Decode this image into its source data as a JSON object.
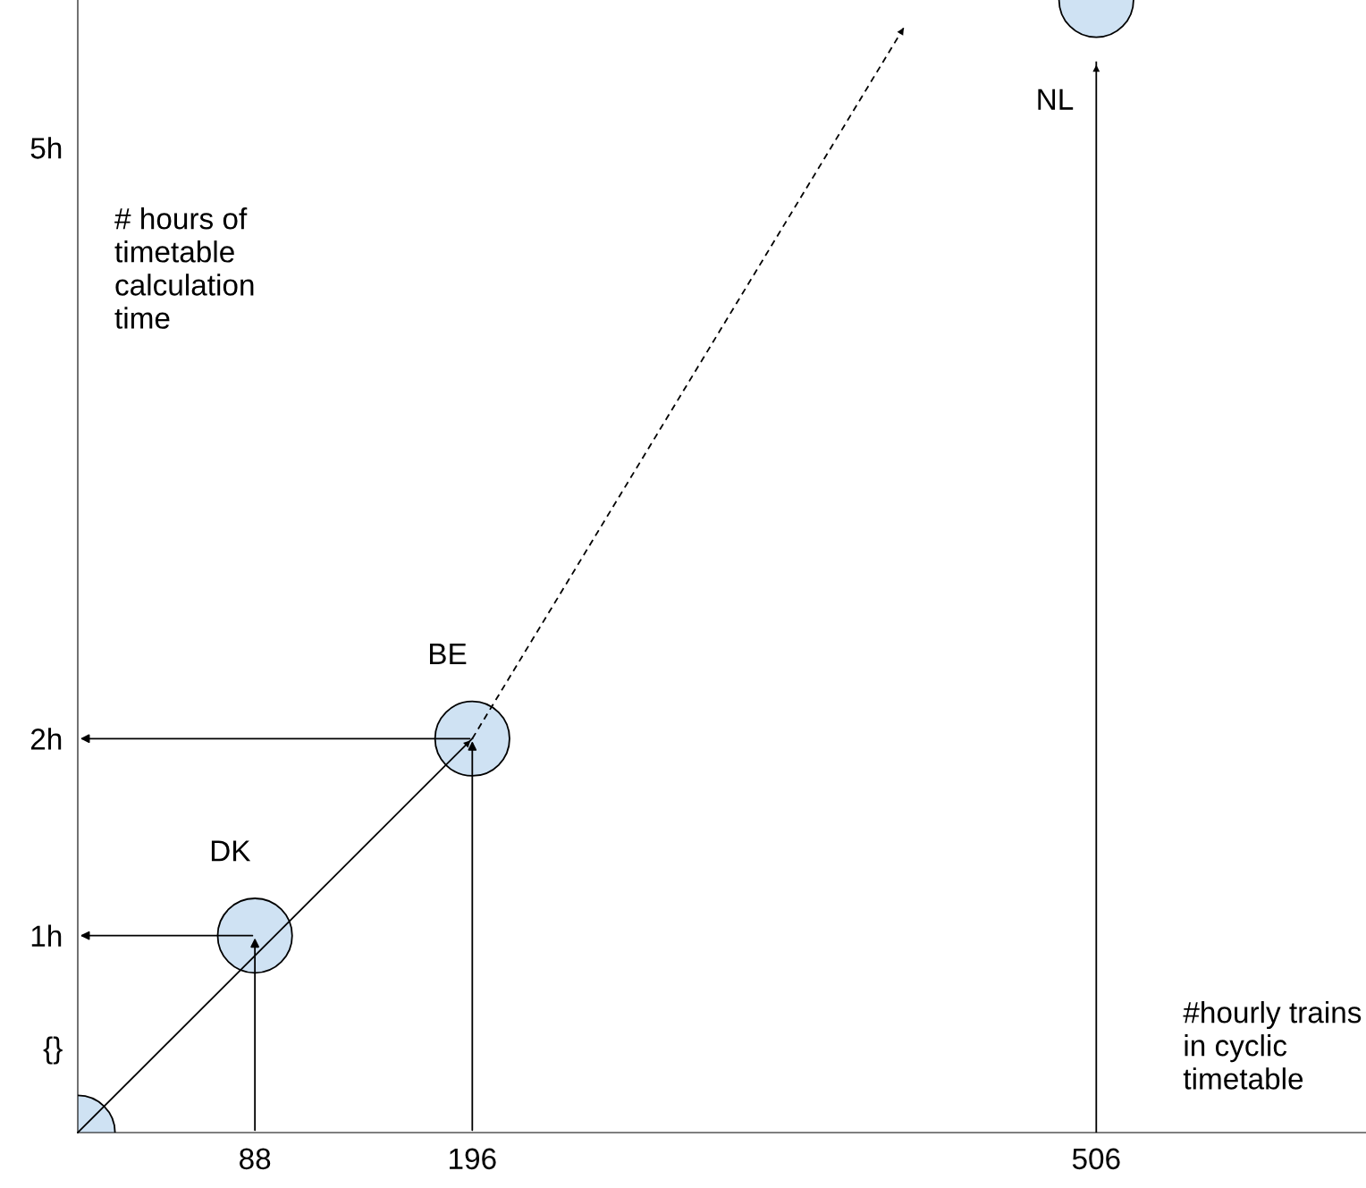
{
  "chart_data": {
    "type": "scatter",
    "xlabel": "#hourly trains\nin cyclic\ntimetable",
    "ylabel": "# hours of\ntimetable\ncalculation\ntime",
    "xlim": [
      0,
      640
    ],
    "ylim": [
      0,
      5.75
    ],
    "xticks": [
      88,
      196,
      506
    ],
    "yticks": [
      {
        "value": 1,
        "label": "1h"
      },
      {
        "value": 2,
        "label": "2h"
      },
      {
        "value": 5,
        "label": "5h"
      }
    ],
    "grid": false,
    "legend": false,
    "series": [
      {
        "type": "scatter",
        "marker": "circle",
        "color": "#cfe2f3",
        "x": [
          0,
          88,
          196,
          506
        ],
        "values": [
          0,
          1,
          2,
          5.75
        ]
      },
      {
        "type": "line",
        "color": "#000000",
        "line_style": "solid",
        "marker": "none",
        "x": [
          0,
          196
        ],
        "values": [
          0,
          2
        ]
      },
      {
        "type": "line",
        "color": "#000000",
        "line_style": "dashed",
        "marker": "none",
        "x": [
          196,
          411
        ],
        "values": [
          2,
          5.62
        ]
      }
    ],
    "ref_lines": [
      {
        "axis": "x",
        "value": 506,
        "color": "#000000",
        "label": "NL"
      }
    ],
    "annotations": [
      {
        "text": "{}",
        "x": 0,
        "y": 0
      },
      {
        "text": "DK",
        "x": 88,
        "y": 1
      },
      {
        "text": "BE",
        "x": 196,
        "y": 2
      }
    ]
  }
}
